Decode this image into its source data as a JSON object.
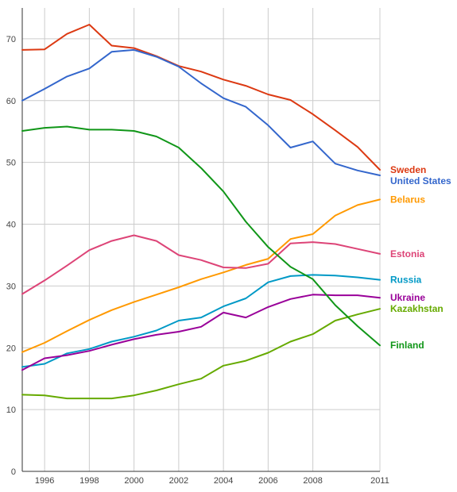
{
  "chart_data": {
    "type": "line",
    "title": "",
    "xlabel": "",
    "ylabel": "",
    "xlim": [
      1995,
      2011
    ],
    "ylim": [
      0,
      75
    ],
    "grid": true,
    "legend": "inline-right",
    "x": [
      1995,
      1996,
      1997,
      1998,
      1999,
      2000,
      2001,
      2002,
      2003,
      2004,
      2005,
      2006,
      2007,
      2008,
      2009,
      2010,
      2011
    ],
    "x_ticks": [
      {
        "value": 1996,
        "label": "1996"
      },
      {
        "value": 1998,
        "label": "1998"
      },
      {
        "value": 2000,
        "label": "2000"
      },
      {
        "value": 2002,
        "label": "2002"
      },
      {
        "value": 2004,
        "label": "2004"
      },
      {
        "value": 2006,
        "label": "2006"
      },
      {
        "value": 2008,
        "label": "2008"
      },
      {
        "value": 2011,
        "label": "2011"
      }
    ],
    "y_ticks": [
      {
        "value": 0,
        "label": "0"
      },
      {
        "value": 10,
        "label": "10"
      },
      {
        "value": 20,
        "label": "20"
      },
      {
        "value": 30,
        "label": "30"
      },
      {
        "value": 40,
        "label": "40"
      },
      {
        "value": 50,
        "label": "50"
      },
      {
        "value": 60,
        "label": "60"
      },
      {
        "value": 70,
        "label": "70"
      }
    ],
    "series": [
      {
        "name": "Sweden",
        "color": "#dc3912",
        "values": [
          68.2,
          68.3,
          70.8,
          72.3,
          68.9,
          68.5,
          67.2,
          65.6,
          64.7,
          63.4,
          62.4,
          61.0,
          60.1,
          57.8,
          55.2,
          52.5,
          48.8
        ]
      },
      {
        "name": "United States",
        "color": "#3366cc",
        "values": [
          60.0,
          61.9,
          63.9,
          65.2,
          67.9,
          68.2,
          67.1,
          65.5,
          62.8,
          60.4,
          59.0,
          56.0,
          52.4,
          53.4,
          49.8,
          48.7,
          47.9
        ]
      },
      {
        "name": "Belarus",
        "color": "#ff9900",
        "values": [
          19.3,
          20.8,
          22.7,
          24.5,
          26.1,
          27.4,
          28.6,
          29.8,
          31.1,
          32.2,
          33.4,
          34.4,
          37.6,
          38.4,
          41.4,
          43.1,
          44.0
        ]
      },
      {
        "name": "Estonia",
        "color": "#dd4477",
        "values": [
          28.7,
          30.9,
          33.3,
          35.8,
          37.3,
          38.2,
          37.3,
          35.0,
          34.2,
          33.0,
          32.9,
          33.6,
          36.9,
          37.1,
          36.8,
          36.0,
          35.2
        ]
      },
      {
        "name": "Russia",
        "color": "#0099c6",
        "values": [
          16.9,
          17.4,
          19.1,
          19.8,
          21.0,
          21.8,
          22.8,
          24.4,
          24.9,
          26.7,
          28.0,
          30.6,
          31.6,
          31.8,
          31.7,
          31.4,
          31.0
        ]
      },
      {
        "name": "Ukraine",
        "color": "#990099",
        "values": [
          16.4,
          18.3,
          18.8,
          19.5,
          20.5,
          21.4,
          22.1,
          22.6,
          23.4,
          25.7,
          24.9,
          26.6,
          27.9,
          28.6,
          28.5,
          28.5,
          28.1
        ]
      },
      {
        "name": "Kazakhstan",
        "color": "#66aa00",
        "values": [
          12.4,
          12.3,
          11.8,
          11.8,
          11.8,
          12.3,
          13.1,
          14.1,
          15.0,
          17.1,
          17.9,
          19.2,
          21.0,
          22.2,
          24.4,
          25.4,
          26.3
        ]
      },
      {
        "name": "Finland",
        "color": "#109618",
        "values": [
          55.1,
          55.6,
          55.8,
          55.3,
          55.3,
          55.1,
          54.2,
          52.4,
          49.1,
          45.3,
          40.4,
          36.3,
          33.1,
          31.1,
          26.9,
          23.5,
          20.4
        ]
      }
    ],
    "label_order": [
      "Sweden",
      "United States",
      "Belarus",
      "Estonia",
      "Russia",
      "Ukraine",
      "Kazakhstan",
      "Finland"
    ]
  }
}
